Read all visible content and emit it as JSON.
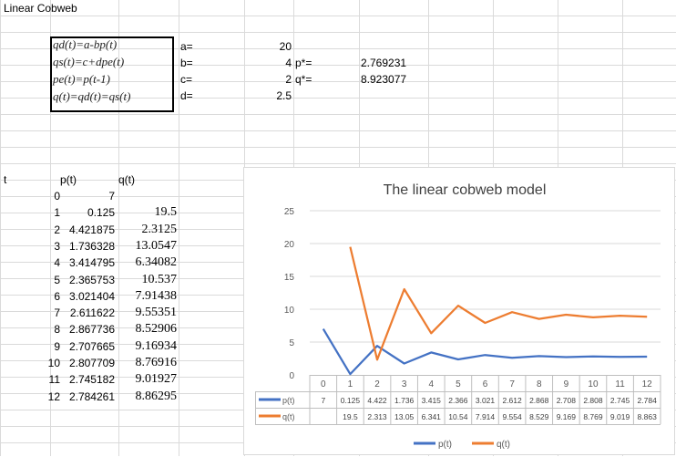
{
  "sheet": {
    "title": "Linear Cobweb",
    "equations": [
      "qd(t)=a-bp(t)",
      "qs(t)=c+dpe(t)",
      "pe(t)=p(t-1)",
      "q(t)=qd(t)=qs(t)"
    ],
    "params": [
      {
        "label": "a=",
        "value": "20"
      },
      {
        "label": "b=",
        "value": "4"
      },
      {
        "label": "c=",
        "value": "2"
      },
      {
        "label": "d=",
        "value": "2.5"
      }
    ],
    "equilibrium": [
      {
        "label": "p*=",
        "value": "2.769231"
      },
      {
        "label": "q*=",
        "value": "8.923077"
      }
    ],
    "table": {
      "headers": [
        "t",
        "p(t)",
        "q(t)"
      ],
      "rows": [
        [
          "0",
          "7",
          ""
        ],
        [
          "1",
          "0.125",
          "19.5"
        ],
        [
          "2",
          "4.421875",
          "2.3125"
        ],
        [
          "3",
          "1.736328",
          "13.0547"
        ],
        [
          "4",
          "3.414795",
          "6.34082"
        ],
        [
          "5",
          "2.365753",
          "10.537"
        ],
        [
          "6",
          "3.021404",
          "7.91438"
        ],
        [
          "7",
          "2.611622",
          "9.55351"
        ],
        [
          "8",
          "2.867736",
          "8.52906"
        ],
        [
          "9",
          "2.707665",
          "9.16934"
        ],
        [
          "10",
          "2.807709",
          "8.76916"
        ],
        [
          "11",
          "2.745182",
          "9.01927"
        ],
        [
          "12",
          "2.784261",
          "8.86295"
        ]
      ]
    }
  },
  "chart_data": {
    "type": "line",
    "title": "The linear cobweb model",
    "categories": [
      "0",
      "1",
      "2",
      "3",
      "4",
      "5",
      "6",
      "7",
      "8",
      "9",
      "10",
      "11",
      "12"
    ],
    "series": [
      {
        "name": "p(t)",
        "color": "#4472C4",
        "values": [
          7,
          0.125,
          4.421875,
          1.736328,
          3.414795,
          2.365753,
          3.021404,
          2.611622,
          2.867736,
          2.707665,
          2.807709,
          2.745182,
          2.784261
        ],
        "table_labels": [
          "7",
          "0.125",
          "4.422",
          "1.736",
          "3.415",
          "2.366",
          "3.021",
          "2.612",
          "2.868",
          "2.708",
          "2.808",
          "2.745",
          "2.784"
        ]
      },
      {
        "name": "q(t)",
        "color": "#ED7D31",
        "values": [
          null,
          19.5,
          2.3125,
          13.0547,
          6.34082,
          10.537,
          7.91438,
          9.55351,
          8.52906,
          9.16934,
          8.76916,
          9.01927,
          8.86295
        ],
        "table_labels": [
          "",
          "19.5",
          "2.313",
          "13.05",
          "6.341",
          "10.54",
          "7.914",
          "9.554",
          "8.529",
          "9.169",
          "8.769",
          "9.019",
          "8.863"
        ]
      }
    ],
    "y_ticks": [
      "0",
      "5",
      "10",
      "15",
      "20",
      "25"
    ],
    "ylim": [
      0,
      25
    ],
    "grid": true,
    "data_table": true,
    "legend": "bottom"
  }
}
